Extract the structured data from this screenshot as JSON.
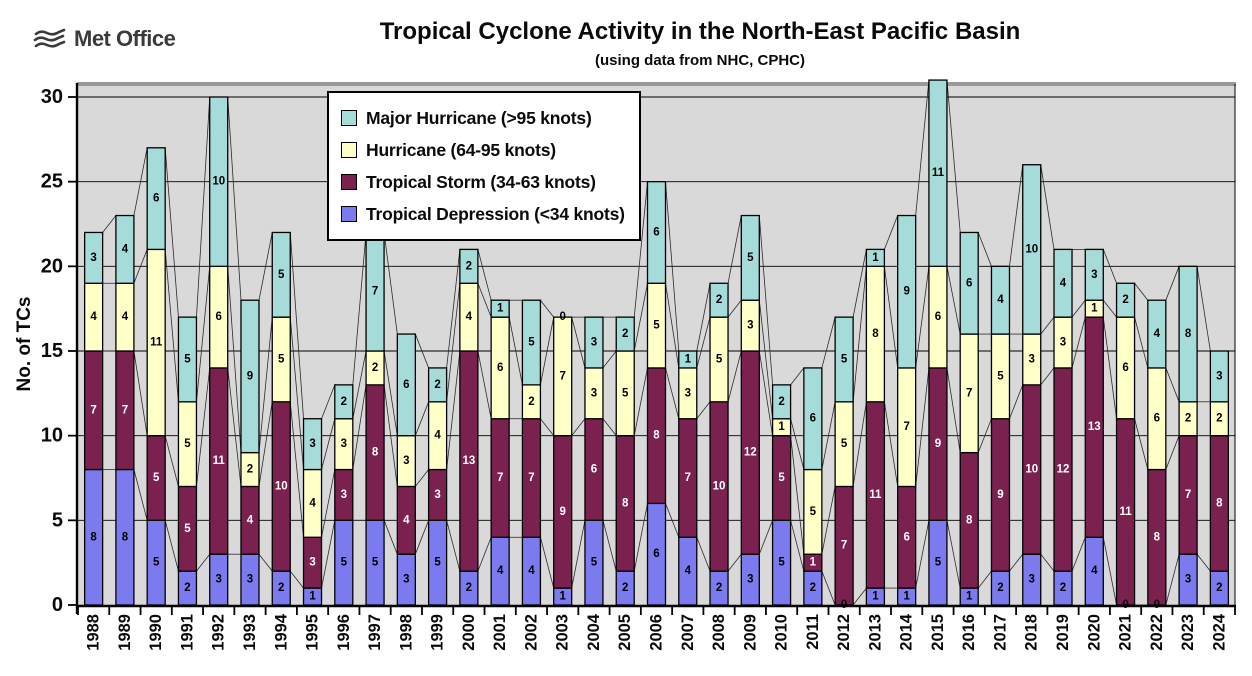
{
  "header": {
    "logo_text": "Met Office"
  },
  "chart_data": {
    "type": "bar",
    "stacked": true,
    "title": "Tropical Cyclone Activity in the North-East Pacific Basin",
    "subtitle": "(using data from NHC, CPHC)",
    "xlabel": "",
    "ylabel": "No. of TCs",
    "ylim": [
      0,
      30
    ],
    "ytick_interval": 5,
    "grid": true,
    "plot_background": "#D9D9D9",
    "legend_position": "top-left-inside",
    "legend_order": [
      3,
      2,
      1,
      0
    ],
    "series_connector_lines": true,
    "categories": [
      "1988",
      "1989",
      "1990",
      "1991",
      "1992",
      "1993",
      "1994",
      "1995",
      "1996",
      "1997",
      "1998",
      "1999",
      "2000",
      "2001",
      "2002",
      "2003",
      "2004",
      "2005",
      "2006",
      "2007",
      "2008",
      "2009",
      "2010",
      "2011",
      "2012",
      "2013",
      "2014",
      "2015",
      "2016",
      "2017",
      "2018",
      "2019",
      "2020",
      "2021",
      "2022",
      "2023",
      "2024"
    ],
    "series": [
      {
        "name": "Tropical Depression (<34 knots)",
        "color": "#7B7BEF",
        "label_color": "#000000",
        "values": [
          8,
          8,
          5,
          2,
          3,
          3,
          2,
          1,
          5,
          5,
          3,
          5,
          2,
          4,
          4,
          1,
          5,
          2,
          6,
          4,
          2,
          3,
          5,
          2,
          0,
          1,
          1,
          5,
          1,
          2,
          3,
          2,
          4,
          0,
          0,
          3,
          2
        ]
      },
      {
        "name": "Tropical Storm (34-63 knots)",
        "color": "#7B2150",
        "label_color": "#FFFFFF",
        "values": [
          7,
          7,
          5,
          5,
          11,
          4,
          10,
          3,
          3,
          8,
          4,
          3,
          13,
          7,
          7,
          9,
          6,
          8,
          8,
          7,
          10,
          12,
          5,
          1,
          7,
          11,
          6,
          9,
          8,
          9,
          10,
          12,
          13,
          11,
          8,
          7,
          8
        ]
      },
      {
        "name": "Hurricane (64-95 knots)",
        "color": "#FFFFC8",
        "label_color": "#000000",
        "values": [
          4,
          4,
          11,
          5,
          6,
          2,
          5,
          4,
          3,
          2,
          3,
          4,
          4,
          6,
          2,
          7,
          3,
          5,
          5,
          3,
          5,
          3,
          1,
          5,
          5,
          8,
          7,
          6,
          7,
          5,
          3,
          3,
          1,
          6,
          6,
          2,
          2
        ]
      },
      {
        "name": "Major Hurricane (>95 knots)",
        "color": "#A5DBD8",
        "label_color": "#000000",
        "values": [
          3,
          4,
          6,
          5,
          10,
          9,
          5,
          3,
          2,
          7,
          6,
          2,
          2,
          1,
          5,
          0,
          3,
          2,
          6,
          1,
          2,
          5,
          2,
          6,
          5,
          1,
          9,
          11,
          6,
          4,
          10,
          4,
          3,
          2,
          4,
          8,
          3
        ]
      }
    ]
  }
}
